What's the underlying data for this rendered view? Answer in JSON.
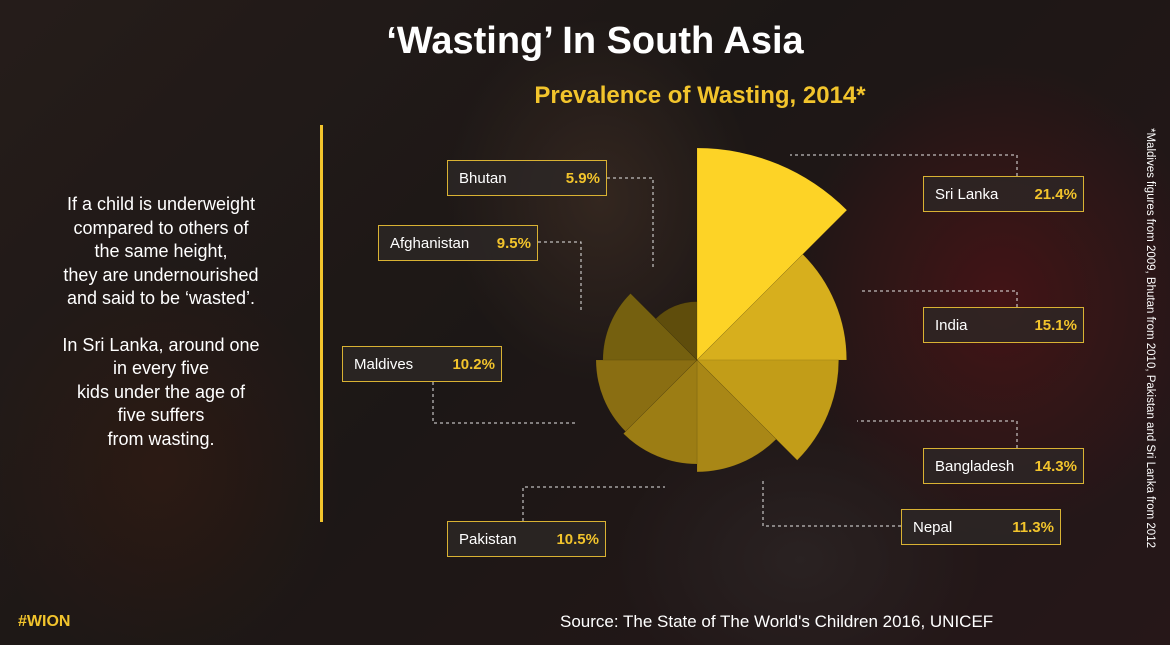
{
  "title": "‘Wasting’ In South Asia",
  "description": [
    "If a child is underweight\ncompared to others of\nthe same height,\nthey are undernourished\nand said to be ‘wasted’.",
    "In Sri Lanka, around one\nin every five\nkids under the age of\nfive suffers\nfrom wasting."
  ],
  "footnote": "*Maldives figures from 2009, Bhutan from 2010, Pakistan and Sri Lanka from 2012",
  "brand": "#WION",
  "source": "Source: The State of The World's Children 2016, UNICEF",
  "colors": {
    "accent": "#f2c42c",
    "text": "#ffffff"
  },
  "chart_data": {
    "type": "pie",
    "subtype": "polar-area",
    "title": "Prevalence of Wasting, 2014*",
    "unit": "%",
    "categories": [
      "Sri Lanka",
      "India",
      "Bangladesh",
      "Nepal",
      "Pakistan",
      "Maldives",
      "Afghanistan",
      "Bhutan"
    ],
    "values": [
      21.4,
      15.1,
      14.3,
      11.3,
      10.5,
      10.2,
      9.5,
      5.9
    ],
    "value_labels": [
      "21.4%",
      "15.1%",
      "14.3%",
      "11.3%",
      "10.5%",
      "10.2%",
      "9.5%",
      "5.9%"
    ],
    "colors": [
      "#fdd326",
      "#d7af1d",
      "#c29d18",
      "#a98716",
      "#9c7d14",
      "#8a6e12",
      "#75600f",
      "#5f4d0c"
    ],
    "legend": "none",
    "grid": false
  }
}
